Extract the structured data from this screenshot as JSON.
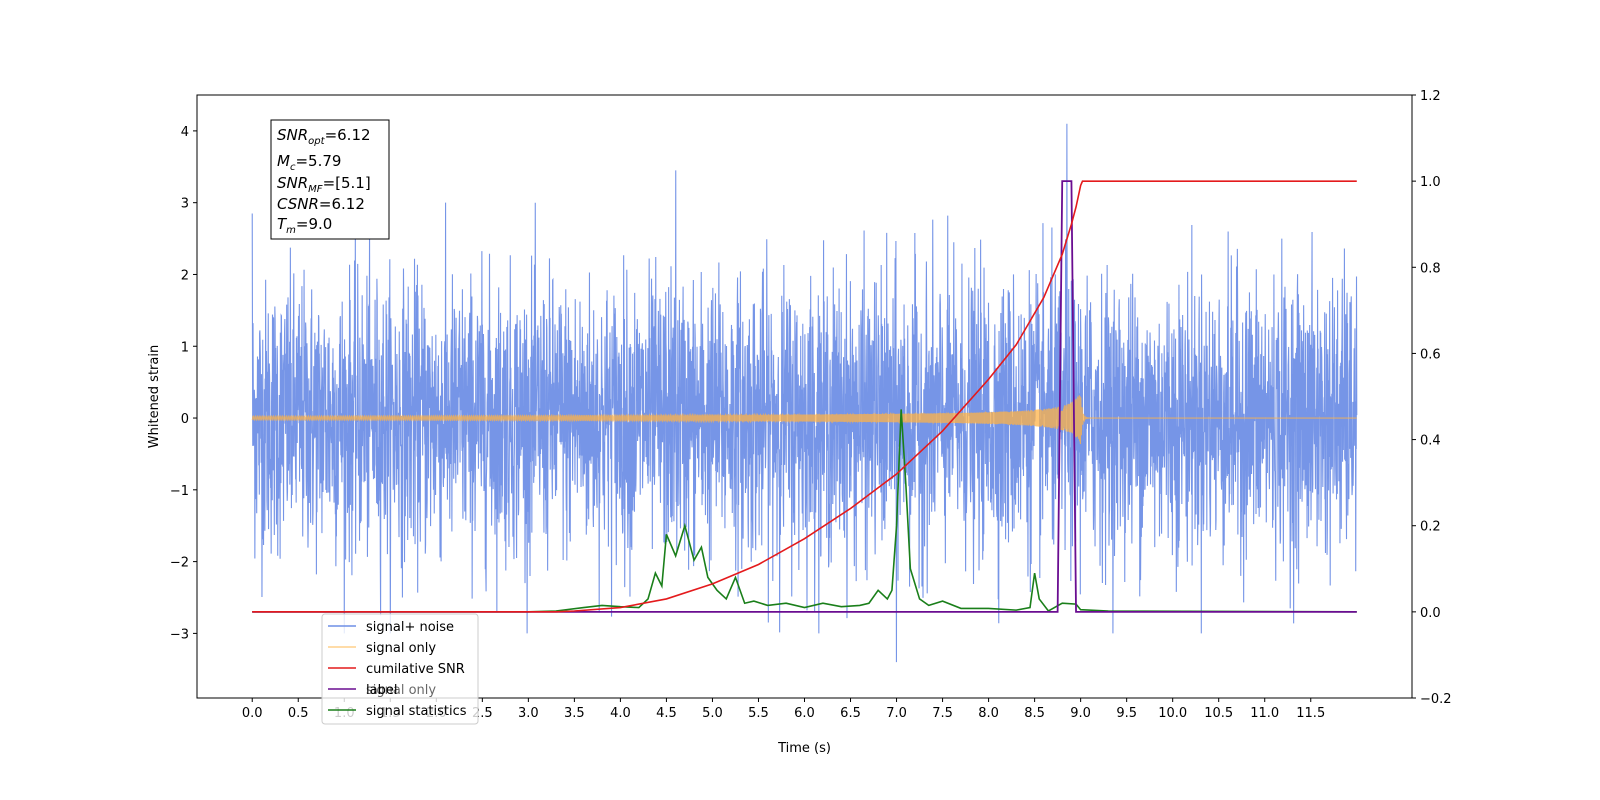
{
  "chart_data": {
    "type": "line",
    "title": "",
    "xlabel": "Time (s)",
    "ylabel_left": "Whitened strain",
    "ylabel_right": "",
    "xlim": [
      -0.6,
      12.6
    ],
    "ylim_left": [
      -3.9,
      4.5
    ],
    "ylim_right": [
      -0.2,
      1.2
    ],
    "x_ticks": [
      "0.0",
      "0.5",
      "1.0",
      "1.5",
      "2.0",
      "2.5",
      "3.0",
      "3.5",
      "4.0",
      "4.5",
      "5.0",
      "5.5",
      "6.0",
      "6.5",
      "7.0",
      "7.5",
      "8.0",
      "8.5",
      "9.0",
      "9.5",
      "10.0",
      "10.5",
      "11.0",
      "11.5"
    ],
    "y_left_ticks": [
      "−3",
      "−2",
      "−1",
      "0",
      "1",
      "2",
      "3",
      "4"
    ],
    "y_right_ticks": [
      "−0.2",
      "0.0",
      "0.2",
      "0.4",
      "0.6",
      "0.8",
      "1.0",
      "1.2"
    ],
    "grid": false,
    "legend_position": "lower-left",
    "legend": [
      "signal+ noise",
      "signal only",
      "cumilative SNR",
      "label",
      "signal statistics"
    ],
    "legend_overlap_text": "signal only",
    "info_box": {
      "line1_sym": "SNR",
      "line1_sub": "opt",
      "line1_val": "=6.12",
      "line2_sym": "M",
      "line2_sub": "c",
      "line2_val": "=5.79",
      "line3_sym": "SNR",
      "line3_sub": "MF",
      "line3_val": "=[5.1]",
      "line4_sym": "CSNR",
      "line4_val": "=6.12",
      "line5_sym": "T",
      "line5_sub": "m",
      "line5_val": "=9.0"
    },
    "series": [
      {
        "name": "signal+ noise",
        "axis": "left",
        "color": "#6f8fe6",
        "description_values": {
          "x_start": 0.0,
          "x_end": 12.0,
          "typical_range": [
            -2.5,
            2.5
          ],
          "max": 4.1,
          "max_at": 8.85,
          "min": -3.4,
          "min_at": 7.0
        }
      },
      {
        "name": "signal only",
        "axis": "left",
        "color": "#ffb347",
        "chirp": {
          "x_start": 0.0,
          "x_merger": 9.0,
          "x_end": 12.0,
          "amplitude_at_merger": 0.38
        }
      },
      {
        "name": "cumilative SNR",
        "axis": "right",
        "color": "#e41a1c",
        "points": [
          [
            0.0,
            0.0
          ],
          [
            3.3,
            0.0
          ],
          [
            3.5,
            0.002
          ],
          [
            4.0,
            0.01
          ],
          [
            4.5,
            0.03
          ],
          [
            5.0,
            0.065
          ],
          [
            5.5,
            0.11
          ],
          [
            6.0,
            0.17
          ],
          [
            6.5,
            0.24
          ],
          [
            7.0,
            0.32
          ],
          [
            7.5,
            0.42
          ],
          [
            8.0,
            0.54
          ],
          [
            8.3,
            0.62
          ],
          [
            8.6,
            0.73
          ],
          [
            8.8,
            0.83
          ],
          [
            8.9,
            0.9
          ],
          [
            8.95,
            0.94
          ],
          [
            9.0,
            0.99
          ],
          [
            9.02,
            1.0
          ],
          [
            12.0,
            1.0
          ]
        ]
      },
      {
        "name": "label",
        "axis": "right",
        "color": "#6a0d91",
        "points": [
          [
            0.0,
            0.0
          ],
          [
            8.75,
            0.0
          ],
          [
            8.8,
            1.0
          ],
          [
            8.9,
            1.0
          ],
          [
            8.95,
            0.0
          ],
          [
            12.0,
            0.0
          ]
        ]
      },
      {
        "name": "signal statistics",
        "axis": "right",
        "color": "#1a7f1a",
        "points": [
          [
            0.0,
            0.0
          ],
          [
            3.0,
            0.0
          ],
          [
            3.3,
            0.002
          ],
          [
            3.6,
            0.01
          ],
          [
            3.8,
            0.015
          ],
          [
            4.0,
            0.012
          ],
          [
            4.2,
            0.01
          ],
          [
            4.3,
            0.03
          ],
          [
            4.38,
            0.09
          ],
          [
            4.45,
            0.06
          ],
          [
            4.5,
            0.18
          ],
          [
            4.6,
            0.13
          ],
          [
            4.7,
            0.2
          ],
          [
            4.8,
            0.12
          ],
          [
            4.88,
            0.15
          ],
          [
            4.95,
            0.08
          ],
          [
            5.05,
            0.05
          ],
          [
            5.15,
            0.03
          ],
          [
            5.25,
            0.08
          ],
          [
            5.35,
            0.02
          ],
          [
            5.45,
            0.025
          ],
          [
            5.6,
            0.015
          ],
          [
            5.8,
            0.02
          ],
          [
            6.0,
            0.01
          ],
          [
            6.2,
            0.02
          ],
          [
            6.4,
            0.012
          ],
          [
            6.6,
            0.015
          ],
          [
            6.7,
            0.02
          ],
          [
            6.8,
            0.05
          ],
          [
            6.9,
            0.03
          ],
          [
            6.95,
            0.05
          ],
          [
            7.0,
            0.2
          ],
          [
            7.05,
            0.47
          ],
          [
            7.1,
            0.3
          ],
          [
            7.15,
            0.1
          ],
          [
            7.25,
            0.03
          ],
          [
            7.35,
            0.015
          ],
          [
            7.5,
            0.025
          ],
          [
            7.7,
            0.008
          ],
          [
            8.0,
            0.008
          ],
          [
            8.3,
            0.004
          ],
          [
            8.45,
            0.01
          ],
          [
            8.5,
            0.09
          ],
          [
            8.55,
            0.03
          ],
          [
            8.65,
            0.002
          ],
          [
            8.8,
            0.02
          ],
          [
            8.95,
            0.018
          ],
          [
            9.0,
            0.005
          ],
          [
            9.3,
            0.002
          ],
          [
            12.0,
            0.0
          ]
        ]
      }
    ]
  }
}
